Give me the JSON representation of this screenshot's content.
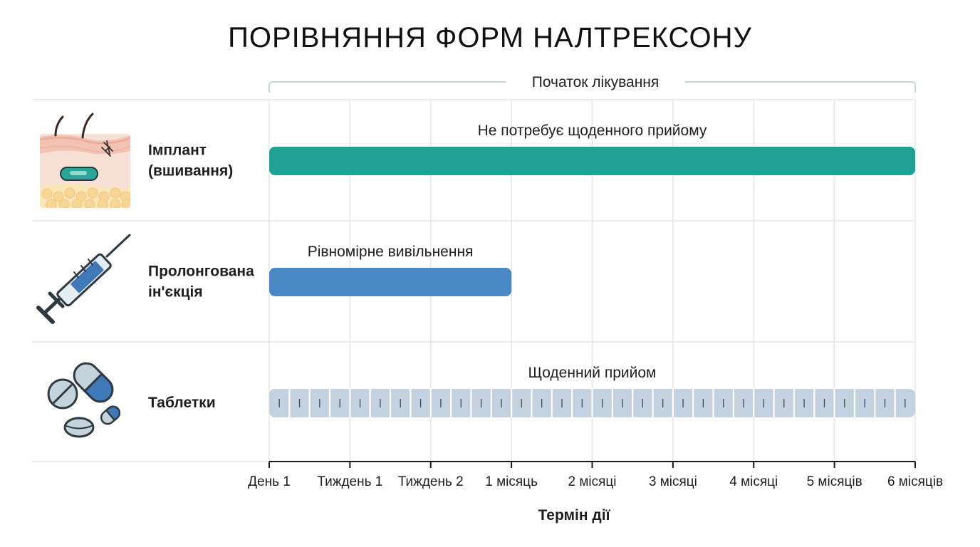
{
  "chart_data": {
    "type": "bar",
    "title": "ПОРІВНЯННЯ ФОРМ НАЛТРЕКСОНУ",
    "top_bracket_label": "Початок лікування",
    "xlabel": "Термін дії",
    "x_ticks": [
      "День 1",
      "Тиждень 1",
      "Тиждень 2",
      "1 місяць",
      "2 місяці",
      "3 місяці",
      "4 місяці",
      "5 місяців",
      "6 місяців"
    ],
    "grid": true,
    "rows": [
      {
        "label_lines": [
          "Імплант",
          "(вшивання)"
        ],
        "icon": "implant-icon",
        "bar_label": "Не потребує щоденного прийому",
        "start": "День 1",
        "end": "6 місяців",
        "style": "solid",
        "color": "#1fa194"
      },
      {
        "label_lines": [
          "Пролонгована",
          "ін'єкція"
        ],
        "icon": "syringe-icon",
        "bar_label": "Рівномірне вивільнення",
        "start": "День 1",
        "end": "1 місяць",
        "style": "solid",
        "color": "#4a87c5"
      },
      {
        "label_lines": [
          "Таблетки"
        ],
        "icon": "pills-icon",
        "bar_label": "Щоденний прийом",
        "start": "День 1",
        "end": "6 місяців",
        "style": "daily-segments",
        "color": "#c3d2de"
      }
    ]
  }
}
